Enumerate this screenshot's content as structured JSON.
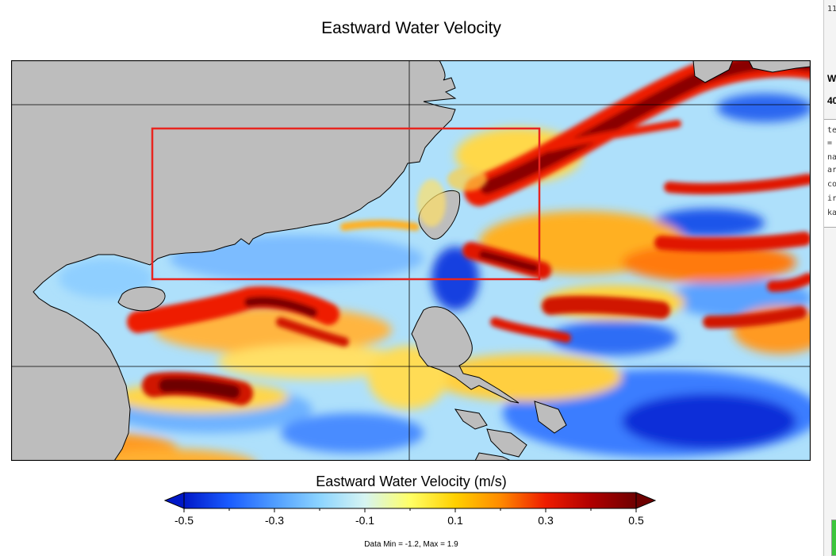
{
  "title": "Eastward Water Velocity",
  "map": {
    "land_color": "#bdbdbd",
    "coast_color": "#000000",
    "grid_color": "#000000",
    "box_color": "#e8251f"
  },
  "colorbar": {
    "title": "Eastward Water Velocity (m/s)",
    "min": -0.5,
    "max": 0.5,
    "tick_labels": [
      "-0.5",
      "-0.3",
      "-0.1",
      "0.1",
      "0.3",
      "0.5"
    ],
    "colors": [
      "#0018c8",
      "#1a5cff",
      "#4f9dff",
      "#8cd4ff",
      "#d6f4f2",
      "#ffff66",
      "#ffd000",
      "#ff8a00",
      "#ee1c00",
      "#b00000",
      "#6e0000"
    ],
    "low_color": "#0018c8",
    "high_color": "#6e0000"
  },
  "data_range": "Data Min = -1.2, Max = 1.9",
  "right_panel": {
    "lines": [
      "11",
      "W",
      "40",
      "te",
      "=",
      "na",
      "ar",
      "co",
      "ir",
      "ka"
    ]
  }
}
